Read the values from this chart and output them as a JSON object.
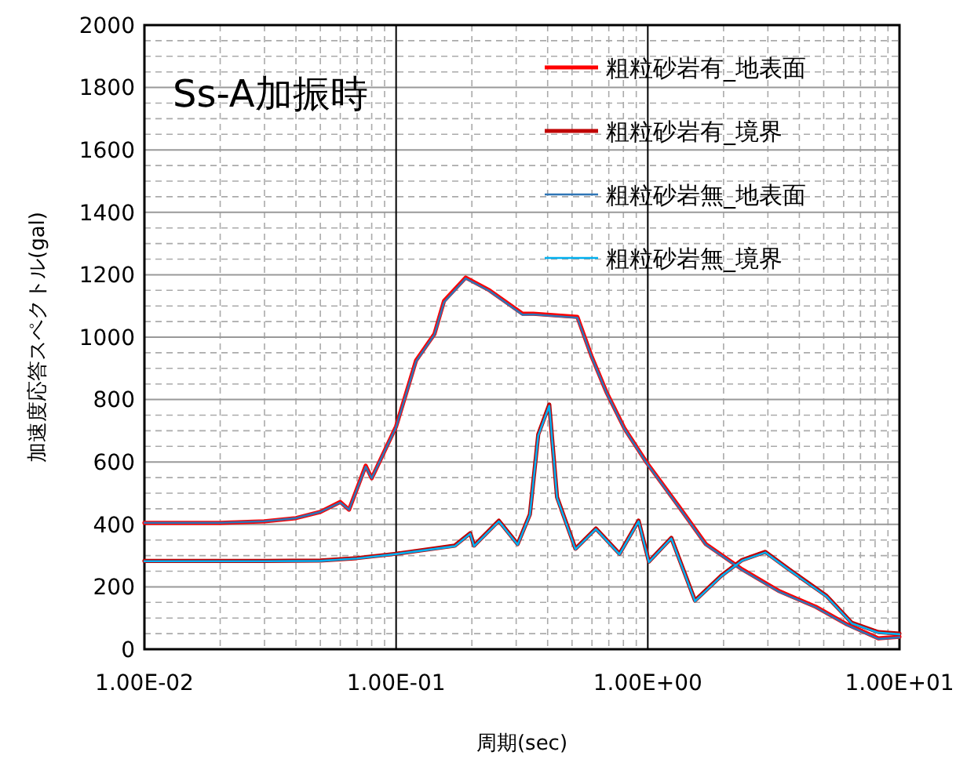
{
  "chart_data": {
    "type": "line",
    "title": "Ss-A加振時",
    "xlabel": "周期(sec)",
    "ylabel": "加速度応答スペクトル(gal)",
    "log": "x",
    "grid": true,
    "legend": "top right",
    "line_style": "solid",
    "marker": "none",
    "xlim": [
      0.01,
      10
    ],
    "xticks": [
      {
        "value": 0.01,
        "label": "1.00E-02"
      },
      {
        "value": 0.1,
        "label": "1.00E-01"
      },
      {
        "value": 1,
        "label": "1.00E+00"
      },
      {
        "value": 10,
        "label": "1.00E+01"
      }
    ],
    "ylim": [
      0,
      2000
    ],
    "yticks": [
      0,
      200,
      400,
      600,
      800,
      1000,
      1200,
      1400,
      1600,
      1800,
      2000
    ],
    "series": [
      {
        "name": "粗粒砂岩有_地表面",
        "color": "#ff0000",
        "x": [
          0.01,
          0.02,
          0.03,
          0.04,
          0.05,
          0.06,
          0.065,
          0.0757,
          0.08,
          0.1,
          0.12,
          0.142,
          0.155,
          0.189,
          0.235,
          0.318,
          0.351,
          0.525,
          0.597,
          0.685,
          0.807,
          0.99,
          1.33,
          1.7,
          2.37,
          3.33,
          4.65,
          6.18,
          8.24,
          10
        ],
        "values": [
          405,
          405,
          410,
          420,
          440,
          472,
          447,
          588,
          548,
          714,
          925,
          1010,
          1116,
          1191,
          1150,
          1075,
          1075,
          1065,
          940,
          824,
          708,
          598,
          457,
          337,
          256,
          186,
          136,
          80,
          35,
          40
        ]
      },
      {
        "name": "粗粒砂岩有_境界",
        "color": "#c00000",
        "x": [
          0.01,
          0.02,
          0.03,
          0.05,
          0.07,
          0.1,
          0.171,
          0.197,
          0.204,
          0.256,
          0.304,
          0.34,
          0.367,
          0.406,
          0.436,
          0.516,
          0.622,
          0.772,
          0.919,
          1.01,
          1.24,
          1.54,
          1.96,
          2.37,
          2.93,
          3.64,
          5.13,
          6.46,
          8.24,
          10
        ],
        "values": [
          283,
          283,
          283,
          284,
          292,
          306,
          332,
          372,
          332,
          412,
          337,
          432,
          688,
          784,
          487,
          322,
          387,
          306,
          412,
          281,
          357,
          156,
          236,
          286,
          312,
          256,
          171,
          85,
          55,
          50
        ]
      },
      {
        "name": "粗粒砂岩無_地表面",
        "color": "#2e75b6",
        "x": [
          0.01,
          0.02,
          0.03,
          0.04,
          0.05,
          0.06,
          0.065,
          0.0757,
          0.08,
          0.1,
          0.12,
          0.142,
          0.155,
          0.189,
          0.235,
          0.318,
          0.351,
          0.525,
          0.597,
          0.685,
          0.807,
          0.99,
          1.33,
          1.7,
          2.37,
          3.33,
          4.65,
          6.18,
          8.24,
          10
        ],
        "values": [
          405,
          405,
          410,
          420,
          440,
          470,
          447,
          585,
          548,
          712,
          922,
          1008,
          1112,
          1188,
          1148,
          1072,
          1073,
          1062,
          938,
          822,
          706,
          596,
          455,
          335,
          254,
          184,
          134,
          78,
          33,
          38
        ]
      },
      {
        "name": "粗粒砂岩無_境界",
        "color": "#00b0f0",
        "x": [
          0.01,
          0.02,
          0.03,
          0.05,
          0.07,
          0.1,
          0.171,
          0.197,
          0.204,
          0.256,
          0.304,
          0.34,
          0.367,
          0.406,
          0.436,
          0.516,
          0.622,
          0.772,
          0.919,
          1.01,
          1.24,
          1.54,
          1.96,
          2.37,
          2.93,
          3.64,
          5.13,
          6.46,
          8.24,
          10
        ],
        "values": [
          282,
          282,
          282,
          283,
          291,
          305,
          330,
          370,
          330,
          410,
          335,
          430,
          685,
          780,
          485,
          320,
          385,
          304,
          410,
          279,
          355,
          154,
          234,
          284,
          310,
          254,
          169,
          83,
          53,
          48
        ]
      }
    ]
  }
}
